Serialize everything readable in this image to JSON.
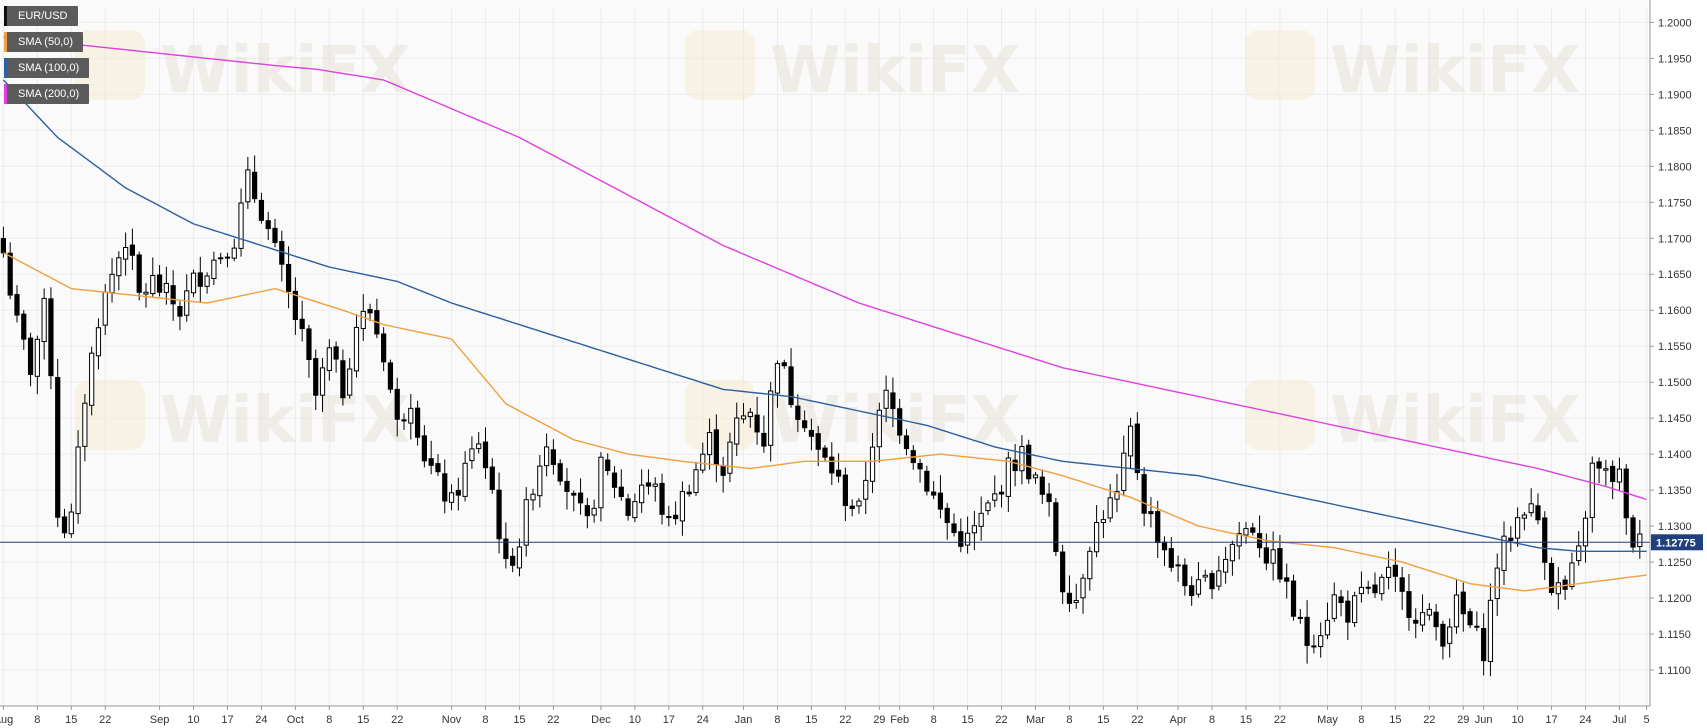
{
  "legend": [
    {
      "label": "EUR/USD",
      "color": "#111111"
    },
    {
      "label": "SMA (50,0)",
      "color": "#f0a040"
    },
    {
      "label": "SMA (100,0)",
      "color": "#2b5f9e"
    },
    {
      "label": "SMA (200,0)",
      "color": "#e040e0"
    }
  ],
  "watermark": "WikiFX",
  "colors": {
    "sma50": "#f0a040",
    "sma100": "#2b5f9e",
    "sma200": "#e040e0",
    "priceLine": "#1f3f7f",
    "priceTag": "#1f3f7f",
    "up": "#ffffff",
    "down": "#000000"
  },
  "chart_data": {
    "type": "candlestick",
    "series_name": "EUR/USD",
    "ylim": [
      1.105,
      1.202
    ],
    "y_ticks": [
      "1.2000",
      "1.1950",
      "1.1900",
      "1.1850",
      "1.1800",
      "1.1750",
      "1.1700",
      "1.1650",
      "1.1600",
      "1.1550",
      "1.1500",
      "1.1450",
      "1.1400",
      "1.1350",
      "1.1300",
      "1.1250",
      "1.1200",
      "1.1150",
      "1.1100"
    ],
    "x_ticks": [
      {
        "label": "Aug",
        "i": 0
      },
      {
        "label": "8",
        "i": 5
      },
      {
        "label": "15",
        "i": 10
      },
      {
        "label": "22",
        "i": 15
      },
      {
        "label": "Sep",
        "i": 23
      },
      {
        "label": "10",
        "i": 28
      },
      {
        "label": "17",
        "i": 33
      },
      {
        "label": "24",
        "i": 38
      },
      {
        "label": "Oct",
        "i": 43
      },
      {
        "label": "8",
        "i": 48
      },
      {
        "label": "15",
        "i": 53
      },
      {
        "label": "22",
        "i": 58
      },
      {
        "label": "Nov",
        "i": 66
      },
      {
        "label": "8",
        "i": 71
      },
      {
        "label": "15",
        "i": 76
      },
      {
        "label": "22",
        "i": 81
      },
      {
        "label": "Dec",
        "i": 88
      },
      {
        "label": "10",
        "i": 93
      },
      {
        "label": "17",
        "i": 98
      },
      {
        "label": "24",
        "i": 103
      },
      {
        "label": "Jan",
        "i": 109
      },
      {
        "label": "8",
        "i": 114
      },
      {
        "label": "15",
        "i": 119
      },
      {
        "label": "22",
        "i": 124
      },
      {
        "label": "29",
        "i": 129
      },
      {
        "label": "Feb",
        "i": 132
      },
      {
        "label": "8",
        "i": 137
      },
      {
        "label": "15",
        "i": 142
      },
      {
        "label": "22",
        "i": 147
      },
      {
        "label": "Mar",
        "i": 152
      },
      {
        "label": "8",
        "i": 157
      },
      {
        "label": "15",
        "i": 162
      },
      {
        "label": "22",
        "i": 167
      },
      {
        "label": "Apr",
        "i": 173
      },
      {
        "label": "8",
        "i": 178
      },
      {
        "label": "15",
        "i": 183
      },
      {
        "label": "22",
        "i": 188
      },
      {
        "label": "May",
        "i": 195
      },
      {
        "label": "8",
        "i": 200
      },
      {
        "label": "15",
        "i": 205
      },
      {
        "label": "22",
        "i": 210
      },
      {
        "label": "29",
        "i": 215
      },
      {
        "label": "Jun",
        "i": 218
      },
      {
        "label": "10",
        "i": 223
      },
      {
        "label": "17",
        "i": 228
      },
      {
        "label": "24",
        "i": 233
      },
      {
        "label": "Jul",
        "i": 238
      },
      {
        "label": "5",
        "i": 242
      }
    ],
    "last_price": "1.12775",
    "last_value": 1.12775,
    "close_anchors": [
      [
        0,
        1.168
      ],
      [
        2,
        1.158
      ],
      [
        4,
        1.152
      ],
      [
        6,
        1.16
      ],
      [
        7,
        1.152
      ],
      [
        8,
        1.132
      ],
      [
        9,
        1.13
      ],
      [
        10,
        1.131
      ],
      [
        12,
        1.148
      ],
      [
        14,
        1.159
      ],
      [
        16,
        1.165
      ],
      [
        18,
        1.17
      ],
      [
        20,
        1.162
      ],
      [
        22,
        1.164
      ],
      [
        24,
        1.162
      ],
      [
        26,
        1.16
      ],
      [
        28,
        1.164
      ],
      [
        30,
        1.166
      ],
      [
        32,
        1.168
      ],
      [
        34,
        1.17
      ],
      [
        36,
        1.178
      ],
      [
        38,
        1.174
      ],
      [
        40,
        1.168
      ],
      [
        42,
        1.162
      ],
      [
        44,
        1.156
      ],
      [
        46,
        1.148
      ],
      [
        48,
        1.154
      ],
      [
        50,
        1.149
      ],
      [
        52,
        1.158
      ],
      [
        54,
        1.16
      ],
      [
        56,
        1.154
      ],
      [
        58,
        1.144
      ],
      [
        60,
        1.148
      ],
      [
        62,
        1.14
      ],
      [
        64,
        1.136
      ],
      [
        66,
        1.133
      ],
      [
        68,
        1.138
      ],
      [
        70,
        1.142
      ],
      [
        72,
        1.135
      ],
      [
        74,
        1.124
      ],
      [
        76,
        1.128
      ],
      [
        78,
        1.136
      ],
      [
        80,
        1.142
      ],
      [
        82,
        1.138
      ],
      [
        84,
        1.133
      ],
      [
        86,
        1.13
      ],
      [
        88,
        1.138
      ],
      [
        90,
        1.136
      ],
      [
        92,
        1.132
      ],
      [
        94,
        1.136
      ],
      [
        96,
        1.135
      ],
      [
        98,
        1.13
      ],
      [
        100,
        1.134
      ],
      [
        102,
        1.138
      ],
      [
        104,
        1.142
      ],
      [
        106,
        1.138
      ],
      [
        108,
        1.144
      ],
      [
        110,
        1.146
      ],
      [
        112,
        1.142
      ],
      [
        114,
        1.154
      ],
      [
        116,
        1.148
      ],
      [
        118,
        1.145
      ],
      [
        120,
        1.14
      ],
      [
        122,
        1.138
      ],
      [
        124,
        1.134
      ],
      [
        126,
        1.132
      ],
      [
        128,
        1.142
      ],
      [
        130,
        1.148
      ],
      [
        132,
        1.144
      ],
      [
        134,
        1.14
      ],
      [
        136,
        1.136
      ],
      [
        138,
        1.132
      ],
      [
        140,
        1.129
      ],
      [
        142,
        1.128
      ],
      [
        144,
        1.131
      ],
      [
        146,
        1.134
      ],
      [
        148,
        1.138
      ],
      [
        150,
        1.14
      ],
      [
        152,
        1.136
      ],
      [
        154,
        1.132
      ],
      [
        156,
        1.122
      ],
      [
        158,
        1.12
      ],
      [
        160,
        1.128
      ],
      [
        162,
        1.132
      ],
      [
        164,
        1.134
      ],
      [
        166,
        1.143
      ],
      [
        168,
        1.133
      ],
      [
        170,
        1.129
      ],
      [
        172,
        1.125
      ],
      [
        174,
        1.122
      ],
      [
        176,
        1.121
      ],
      [
        178,
        1.123
      ],
      [
        180,
        1.126
      ],
      [
        182,
        1.129
      ],
      [
        184,
        1.13
      ],
      [
        186,
        1.126
      ],
      [
        188,
        1.124
      ],
      [
        190,
        1.118
      ],
      [
        192,
        1.114
      ],
      [
        194,
        1.116
      ],
      [
        196,
        1.12
      ],
      [
        198,
        1.118
      ],
      [
        200,
        1.12
      ],
      [
        202,
        1.121
      ],
      [
        204,
        1.123
      ],
      [
        206,
        1.12
      ],
      [
        208,
        1.118
      ],
      [
        210,
        1.117
      ],
      [
        212,
        1.115
      ],
      [
        214,
        1.119
      ],
      [
        216,
        1.116
      ],
      [
        218,
        1.113
      ],
      [
        220,
        1.125
      ],
      [
        222,
        1.129
      ],
      [
        224,
        1.133
      ],
      [
        226,
        1.131
      ],
      [
        228,
        1.122
      ],
      [
        230,
        1.121
      ],
      [
        232,
        1.126
      ],
      [
        234,
        1.138
      ],
      [
        236,
        1.137
      ],
      [
        238,
        1.137
      ],
      [
        239,
        1.13
      ],
      [
        240,
        1.128
      ],
      [
        241,
        1.12775
      ]
    ],
    "sma50_anchors": [
      [
        0,
        1.168
      ],
      [
        10,
        1.163
      ],
      [
        20,
        1.162
      ],
      [
        30,
        1.161
      ],
      [
        40,
        1.163
      ],
      [
        50,
        1.16
      ],
      [
        56,
        1.158
      ],
      [
        66,
        1.156
      ],
      [
        74,
        1.147
      ],
      [
        84,
        1.142
      ],
      [
        92,
        1.14
      ],
      [
        100,
        1.139
      ],
      [
        110,
        1.138
      ],
      [
        118,
        1.139
      ],
      [
        128,
        1.139
      ],
      [
        138,
        1.14
      ],
      [
        148,
        1.139
      ],
      [
        156,
        1.137
      ],
      [
        166,
        1.134
      ],
      [
        176,
        1.13
      ],
      [
        186,
        1.128
      ],
      [
        196,
        1.127
      ],
      [
        206,
        1.125
      ],
      [
        216,
        1.122
      ],
      [
        224,
        1.121
      ],
      [
        232,
        1.122
      ],
      [
        242,
        1.1232
      ]
    ],
    "sma100_anchors": [
      [
        0,
        1.192
      ],
      [
        8,
        1.184
      ],
      [
        18,
        1.177
      ],
      [
        28,
        1.172
      ],
      [
        38,
        1.169
      ],
      [
        48,
        1.166
      ],
      [
        58,
        1.164
      ],
      [
        66,
        1.161
      ],
      [
        76,
        1.158
      ],
      [
        86,
        1.155
      ],
      [
        96,
        1.152
      ],
      [
        106,
        1.149
      ],
      [
        116,
        1.148
      ],
      [
        126,
        1.146
      ],
      [
        136,
        1.144
      ],
      [
        146,
        1.141
      ],
      [
        156,
        1.139
      ],
      [
        166,
        1.138
      ],
      [
        176,
        1.137
      ],
      [
        186,
        1.135
      ],
      [
        196,
        1.133
      ],
      [
        206,
        1.131
      ],
      [
        216,
        1.129
      ],
      [
        226,
        1.127
      ],
      [
        232,
        1.1265
      ],
      [
        242,
        1.1265
      ]
    ],
    "sma200_anchors": [
      [
        0,
        1.198
      ],
      [
        10,
        1.197
      ],
      [
        20,
        1.196
      ],
      [
        30,
        1.195
      ],
      [
        40,
        1.194
      ],
      [
        46,
        1.1935
      ],
      [
        56,
        1.192
      ],
      [
        66,
        1.188
      ],
      [
        76,
        1.184
      ],
      [
        86,
        1.179
      ],
      [
        96,
        1.174
      ],
      [
        106,
        1.169
      ],
      [
        116,
        1.165
      ],
      [
        126,
        1.161
      ],
      [
        136,
        1.158
      ],
      [
        146,
        1.155
      ],
      [
        156,
        1.152
      ],
      [
        166,
        1.15
      ],
      [
        176,
        1.148
      ],
      [
        186,
        1.146
      ],
      [
        196,
        1.144
      ],
      [
        206,
        1.142
      ],
      [
        216,
        1.14
      ],
      [
        226,
        1.138
      ],
      [
        236,
        1.1355
      ],
      [
        242,
        1.1337
      ]
    ]
  }
}
